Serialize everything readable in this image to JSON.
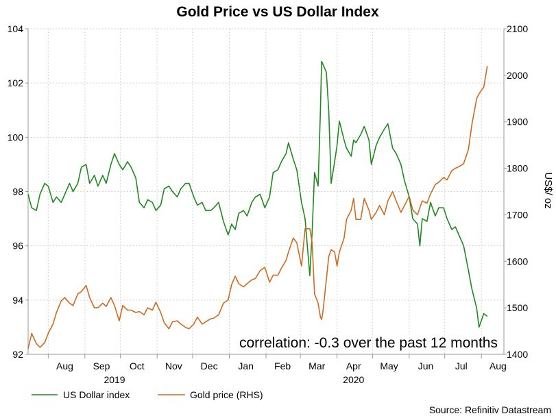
{
  "chart_data": {
    "type": "line",
    "title": "Gold Price vs US Dollar Index",
    "ylabel_right": "US$/ oz",
    "annotation": "correlation: -0.3 over the past 12 months",
    "source": "Source: Refinitiv Datastream",
    "legend_placement": "bottom-left",
    "grid": true,
    "x_range": [
      "2019-07-15",
      "2020-08-20"
    ],
    "x_month_labels": [
      {
        "label": "Aug",
        "date": "2019-08-15"
      },
      {
        "label": "Sep",
        "date": "2019-09-15"
      },
      {
        "label": "Oct",
        "date": "2019-10-15"
      },
      {
        "label": "Nov",
        "date": "2019-11-15"
      },
      {
        "label": "Dec",
        "date": "2019-12-15"
      },
      {
        "label": "Jan",
        "date": "2020-01-15"
      },
      {
        "label": "Feb",
        "date": "2020-02-15"
      },
      {
        "label": "Mar",
        "date": "2020-03-15"
      },
      {
        "label": "Apr",
        "date": "2020-04-15"
      },
      {
        "label": "May",
        "date": "2020-05-15"
      },
      {
        "label": "Jun",
        "date": "2020-06-15"
      },
      {
        "label": "Jul",
        "date": "2020-07-15"
      },
      {
        "label": "Aug",
        "date": "2020-08-15"
      }
    ],
    "x_year_labels": [
      {
        "label": "2019",
        "date": "2019-09-26"
      },
      {
        "label": "2020",
        "date": "2020-04-15"
      }
    ],
    "y_left": {
      "min": 92,
      "max": 104,
      "ticks": [
        92,
        94,
        96,
        98,
        100,
        102,
        104
      ]
    },
    "y_right": {
      "min": 1400,
      "max": 2100,
      "ticks": [
        1400,
        1500,
        1600,
        1700,
        1800,
        1900,
        2000,
        2100
      ]
    },
    "series": [
      {
        "name": "US Dollar index",
        "axis": "left",
        "color": "#1f8a1f",
        "points": [
          [
            "2019-07-15",
            97.9
          ],
          [
            "2019-07-18",
            97.4
          ],
          [
            "2019-07-22",
            97.3
          ],
          [
            "2019-07-25",
            97.9
          ],
          [
            "2019-07-29",
            98.3
          ],
          [
            "2019-08-01",
            98.2
          ],
          [
            "2019-08-05",
            97.6
          ],
          [
            "2019-08-08",
            97.8
          ],
          [
            "2019-08-12",
            97.6
          ],
          [
            "2019-08-15",
            97.9
          ],
          [
            "2019-08-19",
            98.3
          ],
          [
            "2019-08-22",
            98.0
          ],
          [
            "2019-08-26",
            98.3
          ],
          [
            "2019-08-29",
            98.9
          ],
          [
            "2019-09-02",
            99.0
          ],
          [
            "2019-09-05",
            98.3
          ],
          [
            "2019-09-09",
            98.6
          ],
          [
            "2019-09-12",
            98.2
          ],
          [
            "2019-09-16",
            98.6
          ],
          [
            "2019-09-19",
            98.3
          ],
          [
            "2019-09-23",
            99.0
          ],
          [
            "2019-09-26",
            99.4
          ],
          [
            "2019-09-30",
            99.0
          ],
          [
            "2019-10-03",
            98.8
          ],
          [
            "2019-10-07",
            99.1
          ],
          [
            "2019-10-10",
            98.9
          ],
          [
            "2019-10-14",
            98.5
          ],
          [
            "2019-10-17",
            97.6
          ],
          [
            "2019-10-21",
            97.4
          ],
          [
            "2019-10-24",
            97.7
          ],
          [
            "2019-10-28",
            97.6
          ],
          [
            "2019-10-31",
            97.3
          ],
          [
            "2019-11-04",
            97.5
          ],
          [
            "2019-11-07",
            98.1
          ],
          [
            "2019-11-11",
            98.2
          ],
          [
            "2019-11-14",
            98.0
          ],
          [
            "2019-11-18",
            97.8
          ],
          [
            "2019-11-21",
            98.1
          ],
          [
            "2019-11-25",
            98.3
          ],
          [
            "2019-11-28",
            98.3
          ],
          [
            "2019-12-02",
            97.8
          ],
          [
            "2019-12-05",
            97.5
          ],
          [
            "2019-12-09",
            97.6
          ],
          [
            "2019-12-12",
            97.3
          ],
          [
            "2019-12-16",
            97.3
          ],
          [
            "2019-12-19",
            97.4
          ],
          [
            "2019-12-23",
            97.6
          ],
          [
            "2019-12-27",
            96.9
          ],
          [
            "2019-12-31",
            96.4
          ],
          [
            "2020-01-03",
            96.8
          ],
          [
            "2020-01-06",
            96.6
          ],
          [
            "2020-01-09",
            97.2
          ],
          [
            "2020-01-13",
            97.3
          ],
          [
            "2020-01-16",
            97.1
          ],
          [
            "2020-01-20",
            97.6
          ],
          [
            "2020-01-23",
            97.8
          ],
          [
            "2020-01-27",
            97.9
          ],
          [
            "2020-01-31",
            97.4
          ],
          [
            "2020-02-04",
            97.8
          ],
          [
            "2020-02-07",
            98.7
          ],
          [
            "2020-02-11",
            98.8
          ],
          [
            "2020-02-14",
            99.1
          ],
          [
            "2020-02-18",
            99.4
          ],
          [
            "2020-02-20",
            99.8
          ],
          [
            "2020-02-24",
            99.2
          ],
          [
            "2020-02-27",
            98.8
          ],
          [
            "2020-03-02",
            97.6
          ],
          [
            "2020-03-05",
            97.0
          ],
          [
            "2020-03-09",
            94.9
          ],
          [
            "2020-03-11",
            96.5
          ],
          [
            "2020-03-13",
            98.7
          ],
          [
            "2020-03-16",
            98.2
          ],
          [
            "2020-03-18",
            101.0
          ],
          [
            "2020-03-19",
            102.8
          ],
          [
            "2020-03-20",
            102.7
          ],
          [
            "2020-03-23",
            102.4
          ],
          [
            "2020-03-25",
            101.0
          ],
          [
            "2020-03-27",
            98.3
          ],
          [
            "2020-03-30",
            99.1
          ],
          [
            "2020-04-01",
            99.7
          ],
          [
            "2020-04-03",
            100.6
          ],
          [
            "2020-04-07",
            99.9
          ],
          [
            "2020-04-09",
            99.6
          ],
          [
            "2020-04-13",
            99.3
          ],
          [
            "2020-04-15",
            99.9
          ],
          [
            "2020-04-17",
            99.8
          ],
          [
            "2020-04-21",
            100.1
          ],
          [
            "2020-04-24",
            100.4
          ],
          [
            "2020-04-28",
            99.9
          ],
          [
            "2020-04-30",
            99.0
          ],
          [
            "2020-05-04",
            99.7
          ],
          [
            "2020-05-07",
            100.0
          ],
          [
            "2020-05-11",
            100.3
          ],
          [
            "2020-05-14",
            100.5
          ],
          [
            "2020-05-18",
            99.6
          ],
          [
            "2020-05-21",
            99.4
          ],
          [
            "2020-05-25",
            99.0
          ],
          [
            "2020-05-28",
            98.4
          ],
          [
            "2020-06-01",
            97.8
          ],
          [
            "2020-06-04",
            97.0
          ],
          [
            "2020-06-08",
            96.8
          ],
          [
            "2020-06-10",
            96.0
          ],
          [
            "2020-06-12",
            97.0
          ],
          [
            "2020-06-16",
            96.9
          ],
          [
            "2020-06-19",
            97.6
          ],
          [
            "2020-06-23",
            97.1
          ],
          [
            "2020-06-26",
            97.4
          ],
          [
            "2020-06-30",
            97.4
          ],
          [
            "2020-07-03",
            97.0
          ],
          [
            "2020-07-07",
            96.6
          ],
          [
            "2020-07-10",
            96.7
          ],
          [
            "2020-07-14",
            96.3
          ],
          [
            "2020-07-17",
            96.0
          ],
          [
            "2020-07-21",
            95.1
          ],
          [
            "2020-07-24",
            94.4
          ],
          [
            "2020-07-28",
            93.7
          ],
          [
            "2020-07-30",
            93.0
          ],
          [
            "2020-08-03",
            93.5
          ],
          [
            "2020-08-06",
            93.4
          ]
        ]
      },
      {
        "name": "Gold price (RHS)",
        "axis": "right",
        "color": "#d2691e",
        "points": [
          [
            "2019-07-15",
            1412
          ],
          [
            "2019-07-18",
            1445
          ],
          [
            "2019-07-22",
            1423
          ],
          [
            "2019-07-25",
            1415
          ],
          [
            "2019-07-29",
            1425
          ],
          [
            "2019-08-01",
            1445
          ],
          [
            "2019-08-05",
            1465
          ],
          [
            "2019-08-08",
            1490
          ],
          [
            "2019-08-12",
            1515
          ],
          [
            "2019-08-15",
            1522
          ],
          [
            "2019-08-19",
            1510
          ],
          [
            "2019-08-22",
            1505
          ],
          [
            "2019-08-26",
            1530
          ],
          [
            "2019-08-29",
            1535
          ],
          [
            "2019-09-02",
            1548
          ],
          [
            "2019-09-05",
            1522
          ],
          [
            "2019-09-09",
            1500
          ],
          [
            "2019-09-12",
            1500
          ],
          [
            "2019-09-16",
            1510
          ],
          [
            "2019-09-19",
            1503
          ],
          [
            "2019-09-23",
            1522
          ],
          [
            "2019-09-26",
            1505
          ],
          [
            "2019-09-30",
            1472
          ],
          [
            "2019-10-03",
            1505
          ],
          [
            "2019-10-07",
            1495
          ],
          [
            "2019-10-10",
            1495
          ],
          [
            "2019-10-14",
            1490
          ],
          [
            "2019-10-17",
            1492
          ],
          [
            "2019-10-21",
            1485
          ],
          [
            "2019-10-24",
            1500
          ],
          [
            "2019-10-28",
            1495
          ],
          [
            "2019-10-31",
            1512
          ],
          [
            "2019-11-04",
            1490
          ],
          [
            "2019-11-07",
            1468
          ],
          [
            "2019-11-11",
            1455
          ],
          [
            "2019-11-14",
            1470
          ],
          [
            "2019-11-18",
            1472
          ],
          [
            "2019-11-21",
            1465
          ],
          [
            "2019-11-25",
            1458
          ],
          [
            "2019-11-28",
            1455
          ],
          [
            "2019-12-02",
            1465
          ],
          [
            "2019-12-05",
            1480
          ],
          [
            "2019-12-09",
            1465
          ],
          [
            "2019-12-12",
            1470
          ],
          [
            "2019-12-16",
            1476
          ],
          [
            "2019-12-19",
            1478
          ],
          [
            "2019-12-23",
            1485
          ],
          [
            "2019-12-27",
            1510
          ],
          [
            "2019-12-31",
            1517
          ],
          [
            "2020-01-03",
            1550
          ],
          [
            "2020-01-06",
            1568
          ],
          [
            "2020-01-09",
            1552
          ],
          [
            "2020-01-13",
            1545
          ],
          [
            "2020-01-16",
            1552
          ],
          [
            "2020-01-20",
            1560
          ],
          [
            "2020-01-23",
            1563
          ],
          [
            "2020-01-27",
            1580
          ],
          [
            "2020-01-31",
            1587
          ],
          [
            "2020-02-04",
            1555
          ],
          [
            "2020-02-07",
            1570
          ],
          [
            "2020-02-11",
            1570
          ],
          [
            "2020-02-14",
            1585
          ],
          [
            "2020-02-18",
            1602
          ],
          [
            "2020-02-20",
            1620
          ],
          [
            "2020-02-24",
            1650
          ],
          [
            "2020-02-27",
            1640
          ],
          [
            "2020-03-02",
            1590
          ],
          [
            "2020-03-05",
            1670
          ],
          [
            "2020-03-09",
            1670
          ],
          [
            "2020-03-11",
            1640
          ],
          [
            "2020-03-13",
            1530
          ],
          [
            "2020-03-16",
            1510
          ],
          [
            "2020-03-18",
            1480
          ],
          [
            "2020-03-19",
            1475
          ],
          [
            "2020-03-20",
            1490
          ],
          [
            "2020-03-23",
            1560
          ],
          [
            "2020-03-25",
            1610
          ],
          [
            "2020-03-27",
            1625
          ],
          [
            "2020-03-30",
            1620
          ],
          [
            "2020-04-01",
            1590
          ],
          [
            "2020-04-03",
            1620
          ],
          [
            "2020-04-07",
            1650
          ],
          [
            "2020-04-09",
            1690
          ],
          [
            "2020-04-13",
            1710
          ],
          [
            "2020-04-15",
            1735
          ],
          [
            "2020-04-17",
            1690
          ],
          [
            "2020-04-21",
            1690
          ],
          [
            "2020-04-24",
            1735
          ],
          [
            "2020-04-28",
            1710
          ],
          [
            "2020-04-30",
            1690
          ],
          [
            "2020-05-04",
            1705
          ],
          [
            "2020-05-07",
            1720
          ],
          [
            "2020-05-11",
            1700
          ],
          [
            "2020-05-14",
            1730
          ],
          [
            "2020-05-18",
            1750
          ],
          [
            "2020-05-21",
            1730
          ],
          [
            "2020-05-25",
            1705
          ],
          [
            "2020-05-28",
            1720
          ],
          [
            "2020-06-01",
            1740
          ],
          [
            "2020-06-04",
            1710
          ],
          [
            "2020-06-08",
            1700
          ],
          [
            "2020-06-10",
            1715
          ],
          [
            "2020-06-12",
            1730
          ],
          [
            "2020-06-16",
            1725
          ],
          [
            "2020-06-19",
            1745
          ],
          [
            "2020-06-23",
            1765
          ],
          [
            "2020-06-26",
            1770
          ],
          [
            "2020-06-30",
            1780
          ],
          [
            "2020-07-03",
            1775
          ],
          [
            "2020-07-07",
            1795
          ],
          [
            "2020-07-10",
            1800
          ],
          [
            "2020-07-14",
            1805
          ],
          [
            "2020-07-17",
            1810
          ],
          [
            "2020-07-21",
            1840
          ],
          [
            "2020-07-24",
            1895
          ],
          [
            "2020-07-28",
            1950
          ],
          [
            "2020-07-30",
            1960
          ],
          [
            "2020-08-03",
            1975
          ],
          [
            "2020-08-06",
            2020
          ]
        ]
      }
    ]
  }
}
